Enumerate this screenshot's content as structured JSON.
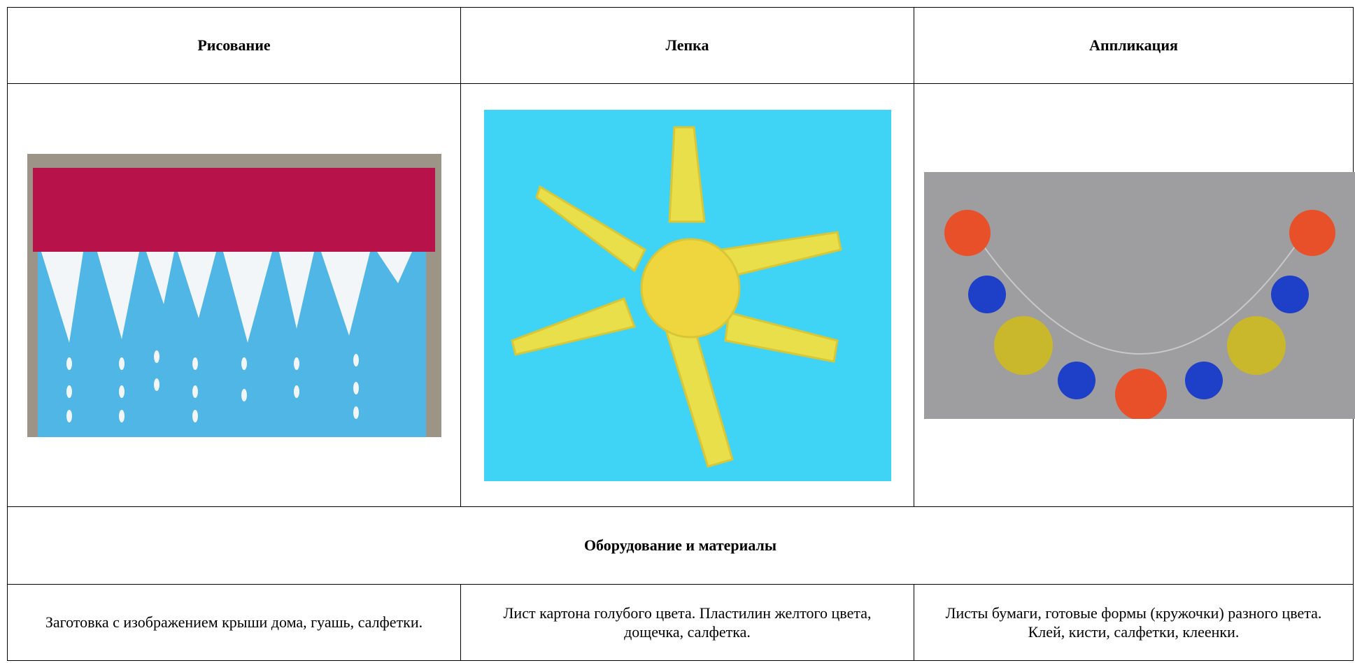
{
  "header": {
    "columns": [
      "Рисование",
      "Лепка",
      "Аппликация"
    ]
  },
  "section_title": "Оборудование и материалы",
  "materials": [
    "Заготовка с изображением крыши дома, гуашь, салфетки.",
    "Лист картона голубого цвета. Пластилин желтого цвета, дощечка, салфетка.",
    "Листы бумаги, готовые формы (кружочки) разного цвета. Клей, кисти, салфетки, клеенки."
  ]
}
